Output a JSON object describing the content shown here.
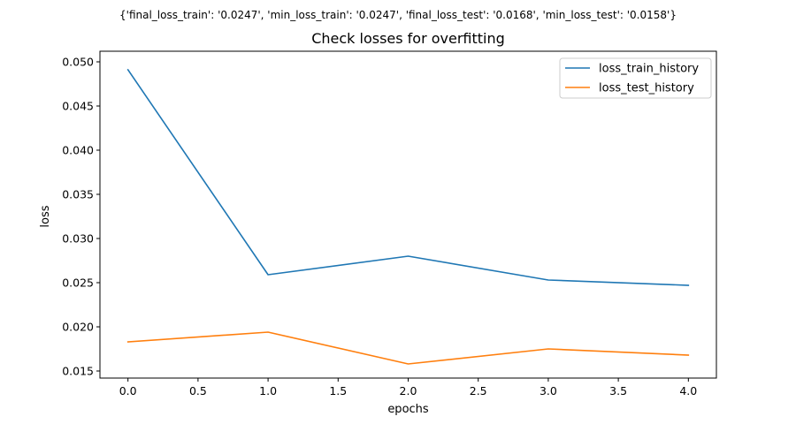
{
  "chart_data": {
    "type": "line",
    "suptitle": "{'final_loss_train': '0.0247', 'min_loss_train': '0.0247', 'final_loss_test': '0.0168', 'min_loss_test': '0.0158'}",
    "title": "Check losses for overfitting",
    "xlabel": "epochs",
    "ylabel": "loss",
    "xlim": [
      -0.2,
      4.2
    ],
    "ylim": [
      0.0142,
      0.0512
    ],
    "x_ticks": [
      0.0,
      0.5,
      1.0,
      1.5,
      2.0,
      2.5,
      3.0,
      3.5,
      4.0
    ],
    "x_tick_labels": [
      "0.0",
      "0.5",
      "1.0",
      "1.5",
      "2.0",
      "2.5",
      "3.0",
      "3.5",
      "4.0"
    ],
    "y_ticks": [
      0.015,
      0.02,
      0.025,
      0.03,
      0.035,
      0.04,
      0.045,
      0.05
    ],
    "y_tick_labels": [
      "0.015",
      "0.020",
      "0.025",
      "0.030",
      "0.035",
      "0.040",
      "0.045",
      "0.050"
    ],
    "grid": false,
    "legend_position": "top-right",
    "x": [
      0,
      1,
      2,
      3,
      4
    ],
    "series": [
      {
        "name": "loss_train_history",
        "color": "#1f77b4",
        "values": [
          0.0491,
          0.0259,
          0.028,
          0.0253,
          0.0247
        ]
      },
      {
        "name": "loss_test_history",
        "color": "#ff7f0e",
        "values": [
          0.0183,
          0.0194,
          0.0158,
          0.0175,
          0.0168
        ]
      }
    ]
  }
}
